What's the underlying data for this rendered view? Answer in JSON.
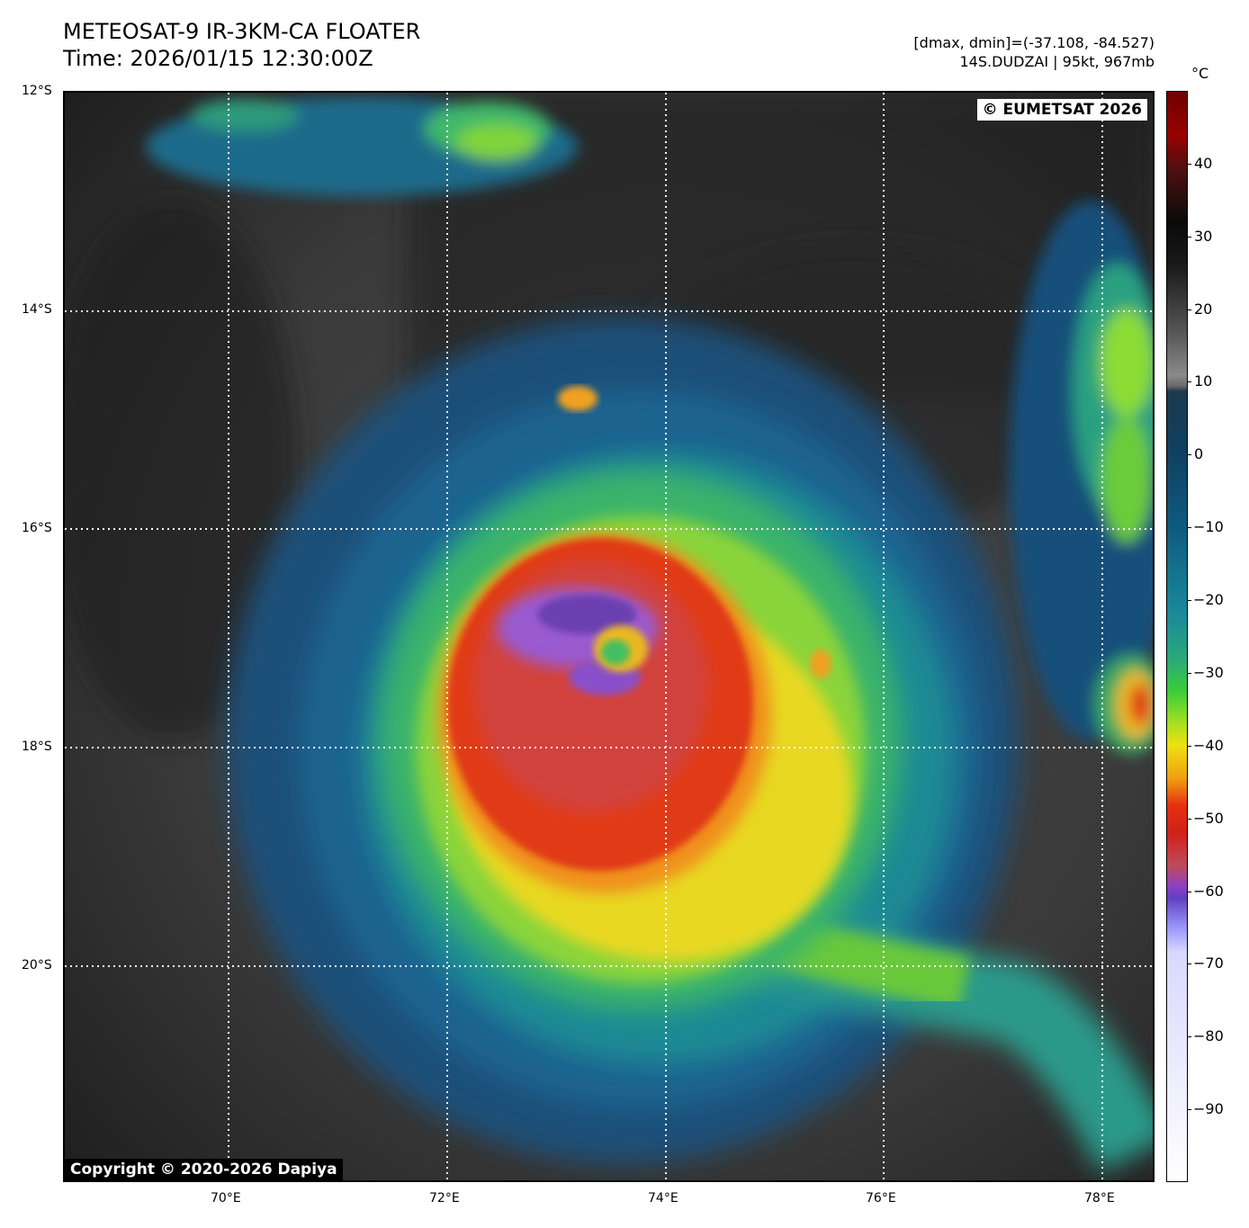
{
  "title": {
    "line1": "METEOSAT-9 IR-3KM-CA FLOATER",
    "line2": "Time: 2026/01/15 12:30:00Z"
  },
  "meta": {
    "range": "[dmax, dmin]=(-37.108, -84.527)",
    "storm": "14S.DUDZAI | 95kt, 967mb"
  },
  "map": {
    "lat_labels": [
      "12°S",
      "14°S",
      "16°S",
      "18°S",
      "20°S"
    ],
    "lon_labels": [
      "70°E",
      "72°E",
      "74°E",
      "76°E",
      "78°E"
    ],
    "copyright_top": "© EUMETSAT 2026",
    "copyright_bottom": "Copyright © 2020-2026 Dapiya"
  },
  "colorbar": {
    "unit": "°C",
    "ticks": [
      "40",
      "30",
      "20",
      "10",
      "0",
      "−10",
      "−20",
      "−30",
      "−40",
      "−50",
      "−60",
      "−70",
      "−80",
      "−90"
    ],
    "range": [
      -100,
      50
    ]
  }
}
